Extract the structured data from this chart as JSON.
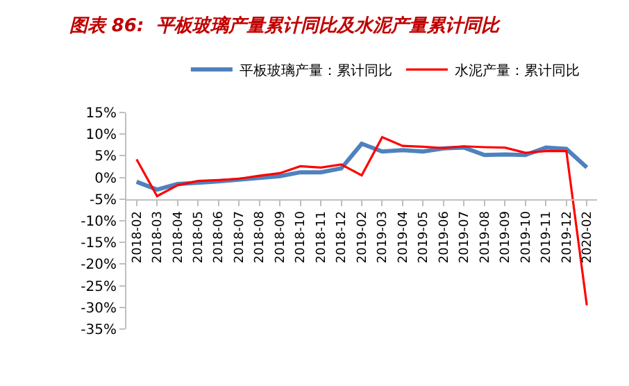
{
  "chart_data": {
    "type": "line",
    "title": "图表 86:  平板玻璃产量累计同比及水泥产量累计同比",
    "categories": [
      "2018-02",
      "2018-03",
      "2018-04",
      "2018-05",
      "2018-06",
      "2018-07",
      "2018-08",
      "2018-09",
      "2018-10",
      "2018-11",
      "2018-12",
      "2019-02",
      "2019-03",
      "2019-04",
      "2019-05",
      "2019-06",
      "2019-07",
      "2019-08",
      "2019-09",
      "2019-10",
      "2019-11",
      "2019-12",
      "2020-02"
    ],
    "series": [
      {
        "name": "平板玻璃产量：累计同比",
        "color": "#4f81bd",
        "values": [
          -1.0,
          -2.8,
          -1.5,
          -1.2,
          -0.9,
          -0.5,
          -0.1,
          0.3,
          1.2,
          1.2,
          2.1,
          7.8,
          6.0,
          6.3,
          6.0,
          6.7,
          6.9,
          5.2,
          5.3,
          5.2,
          6.9,
          6.6,
          2.3
        ]
      },
      {
        "name": "水泥产量：累计同比",
        "color": "#ff0000",
        "values": [
          4.2,
          -4.3,
          -1.8,
          -0.8,
          -0.6,
          -0.3,
          0.4,
          1.0,
          2.6,
          2.3,
          3.0,
          0.5,
          9.3,
          7.3,
          7.1,
          6.8,
          7.2,
          7.0,
          6.9,
          5.7,
          6.1,
          6.1,
          -29.5
        ]
      }
    ],
    "ylim": [
      -35,
      15
    ],
    "yticks": [
      {
        "value": -35,
        "label": "-35%"
      },
      {
        "value": -30,
        "label": "-30%"
      },
      {
        "value": -25,
        "label": "-25%"
      },
      {
        "value": -20,
        "label": "-20%"
      },
      {
        "value": -15,
        "label": "-15%"
      },
      {
        "value": -10,
        "label": "-10%"
      },
      {
        "value": -5,
        "label": "-5%"
      },
      {
        "value": 0,
        "label": "0%"
      },
      {
        "value": 5,
        "label": "5%"
      },
      {
        "value": 10,
        "label": "10%"
      },
      {
        "value": 15,
        "label": "15%"
      }
    ],
    "legend": "top",
    "marker": "none",
    "line_style": "solid"
  }
}
